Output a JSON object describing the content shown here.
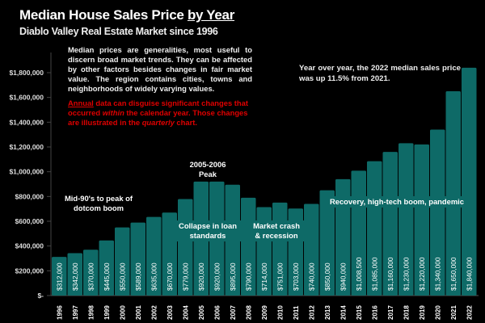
{
  "colors": {
    "bar": "#0e6a67",
    "background": "#000000",
    "warning_text": "#e00000"
  },
  "header": {
    "title_main": "Median House Sales Price ",
    "title_emph": "by Year",
    "subtitle": "Diablo Valley Real Estate Market since 1996"
  },
  "notes": {
    "info": "Median prices are generalities, most useful to discern broad market trends. They can be affected by other factors besides changes in fair market value. The region contains cities, towns and neighborhoods of widely varying values.",
    "warn_annual": "Annual",
    "warn_1": " data can disguise significant changes that occurred ",
    "warn_within": "within",
    "warn_2": " the calendar year. Those changes are illustrated in the ",
    "warn_quarterly": "quarterly",
    "warn_3": " chart.",
    "yoy": "Year over year, the 2022 median sales price was up 11.5% from 2021."
  },
  "annotations": {
    "dotcom": "Mid-90's to peak of dotcom boom",
    "peak": "2005-2006 Peak",
    "collapse": "Collapse in loan standards",
    "crash": "Market crash & recession",
    "recovery": "Recovery, high-tech boom, pandemic"
  },
  "chart_data": {
    "type": "bar",
    "title": "Median House Sales Price by Year",
    "subtitle": "Diablo Valley Real Estate Market since 1996",
    "categories": [
      "1996",
      "1997",
      "1998",
      "1999",
      "2000",
      "2001",
      "2002",
      "2003",
      "2004",
      "2005",
      "2006",
      "2007",
      "2008",
      "2009",
      "2010",
      "2011",
      "2012",
      "2013",
      "2014",
      "2015",
      "2016",
      "2017",
      "2018",
      "2019",
      "2020",
      "2021",
      "2022"
    ],
    "values": [
      312000,
      342000,
      370000,
      445000,
      550000,
      589000,
      635000,
      670000,
      779000,
      920000,
      920000,
      895000,
      790000,
      714000,
      751000,
      703000,
      740000,
      850000,
      940000,
      1008500,
      1085000,
      1160000,
      1230000,
      1220000,
      1340000,
      1650000,
      1840000
    ],
    "data_labels": [
      "$312,000",
      "$342,000",
      "$370,000",
      "$445,000",
      "$550,000",
      "$589,000",
      "$635,000",
      "$670,000",
      "$779,000",
      "$920,000",
      "$920,000",
      "$895,000",
      "$790,000",
      "$714,000",
      "$751,000",
      "$703,000",
      "$740,000",
      "$850,000",
      "$940,000",
      "$1,008,500",
      "$1,085,000",
      "$1,160,000",
      "$1,230,000",
      "$1,220,000",
      "$1,340,000",
      "$1,650,000",
      "$1,840,000"
    ],
    "ylim": [
      0,
      1800000
    ],
    "yticks": [
      0,
      200000,
      400000,
      600000,
      800000,
      1000000,
      1200000,
      1400000,
      1600000,
      1800000
    ],
    "ytick_labels": [
      "$-",
      "$200,000",
      "$400,000",
      "$600,000",
      "$800,000",
      "$1,000,000",
      "$1,200,000",
      "$1,400,000",
      "$1,600,000",
      "$1,800,000"
    ],
    "grid": false,
    "legend": "none"
  }
}
